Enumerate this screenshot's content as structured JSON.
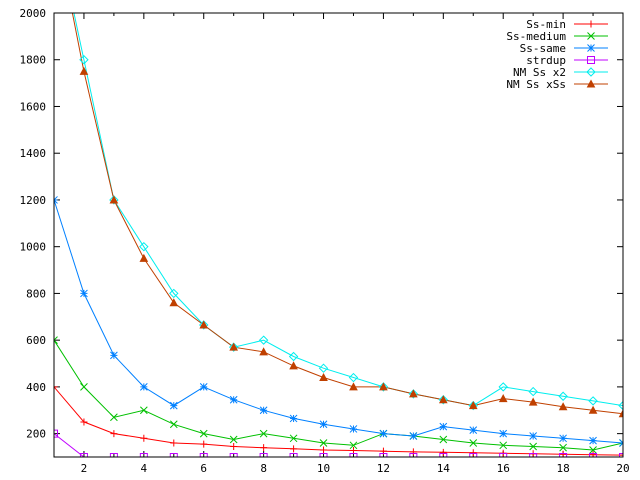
{
  "chart_data": {
    "type": "line",
    "title": "",
    "xlabel": "",
    "ylabel": "",
    "xlim": [
      1,
      20
    ],
    "ylim": [
      100,
      2000
    ],
    "x_ticks": [
      2,
      4,
      6,
      8,
      10,
      12,
      14,
      16,
      18,
      20
    ],
    "y_ticks": [
      200,
      400,
      600,
      800,
      1000,
      1200,
      1400,
      1600,
      1800,
      2000
    ],
    "grid": false,
    "legend_position": "top-right",
    "x": [
      1,
      2,
      3,
      4,
      5,
      6,
      7,
      8,
      9,
      10,
      11,
      12,
      13,
      14,
      15,
      16,
      17,
      18,
      19,
      20
    ],
    "series": [
      {
        "name": "Ss-min",
        "color": "#ff0000",
        "marker": "plus",
        "values": [
          400,
          250,
          200,
          180,
          160,
          155,
          145,
          140,
          135,
          130,
          128,
          125,
          122,
          120,
          118,
          116,
          114,
          112,
          110,
          108
        ]
      },
      {
        "name": "Ss-medium",
        "color": "#00c000",
        "marker": "cross",
        "values": [
          600,
          400,
          270,
          300,
          240,
          200,
          175,
          200,
          180,
          160,
          150,
          200,
          190,
          175,
          160,
          150,
          145,
          140,
          130,
          160
        ]
      },
      {
        "name": "Ss-same",
        "color": "#0080ff",
        "marker": "star",
        "values": [
          1200,
          800,
          535,
          400,
          320,
          400,
          345,
          300,
          265,
          240,
          220,
          200,
          190,
          230,
          215,
          200,
          190,
          180,
          170,
          160
        ]
      },
      {
        "name": "strdup",
        "color": "#c000ff",
        "marker": "square",
        "values": [
          200,
          100,
          100,
          100,
          100,
          100,
          100,
          100,
          100,
          100,
          100,
          100,
          100,
          100,
          100,
          100,
          100,
          100,
          100,
          100
        ]
      },
      {
        "name": "NM Ss x2",
        "color": "#00eeee",
        "marker": "diamond",
        "values": [
          2400,
          1800,
          1200,
          1000,
          800,
          665,
          570,
          600,
          530,
          480,
          440,
          400,
          370,
          345,
          320,
          400,
          380,
          360,
          340,
          320
        ]
      },
      {
        "name": "NM Ss xSs",
        "color": "#c04000",
        "marker": "triangle",
        "values": [
          2400,
          1750,
          1200,
          950,
          760,
          665,
          570,
          550,
          490,
          440,
          400,
          400,
          370,
          345,
          320,
          350,
          335,
          315,
          300,
          285
        ]
      }
    ]
  }
}
